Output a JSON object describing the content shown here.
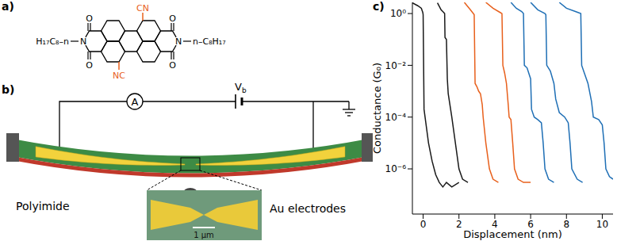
{
  "panels": {
    "a": {
      "panel_label": "a)",
      "molecule": {
        "left_chain": "H₁₇C₈–n",
        "right_chain": "n–C₈H₁₇",
        "imide_atom": "N",
        "carbonyl_atom": "O",
        "substituent_top": "CN",
        "substituent_bottom": "NC",
        "substituent_color": "#e8601c"
      }
    },
    "b": {
      "panel_label": "b)",
      "ammeter": "A",
      "bias_symbol": "V",
      "bias_subscript": "b",
      "substrate_label": "Polyimide",
      "electrode_label": "Au electrodes",
      "scale_bar": "1 µm"
    }
  },
  "chart_data": {
    "panel_label": "c)",
    "type": "line",
    "x_label": "Displacement (nm)",
    "y_label": "Conductance (G₀)",
    "log": "y",
    "xlim": [
      -0.6,
      10.6
    ],
    "xticks": [
      0,
      2,
      4,
      6,
      8,
      10
    ],
    "ylim": [
      1.8e-08,
      2.7
    ],
    "yticks": [
      {
        "value": 1e-06,
        "label": "10⁻⁶"
      },
      {
        "value": 0.0001,
        "label": "10⁻⁴"
      },
      {
        "value": 0.01,
        "label": "10⁻²"
      },
      {
        "value": 1,
        "label": "10⁰"
      }
    ],
    "series": [
      {
        "color": "#1a1a1a",
        "x": [
          -0.6,
          -0.3,
          -0.1,
          -0.02,
          0.0,
          0.05,
          0.15,
          0.3,
          0.5,
          0.7,
          0.9,
          1.1,
          1.3,
          1.6,
          2.0
        ],
        "values": [
          2.6,
          2.0,
          1.6,
          1.1,
          0.9,
          0.0002,
          6e-05,
          1e-05,
          2e-06,
          6e-07,
          3e-07,
          2e-07,
          3e-07,
          2e-07,
          3e-07
        ]
      },
      {
        "color": "#1a1a1a",
        "x": [
          0.8,
          1.0,
          1.15,
          1.2,
          1.22,
          1.3,
          1.35,
          1.4,
          1.6,
          1.8,
          2.0,
          2.2,
          2.5
        ],
        "values": [
          2.6,
          1.4,
          1.1,
          1.0,
          0.12,
          0.1,
          0.003,
          0.0008,
          0.0001,
          1e-05,
          1e-06,
          4e-07,
          3e-07
        ]
      },
      {
        "color": "#e8601c",
        "x": [
          2.3,
          2.6,
          2.8,
          2.85,
          2.9,
          3.0,
          3.1,
          3.2,
          3.3,
          3.35,
          3.5,
          3.7,
          3.9,
          4.2
        ],
        "values": [
          2.7,
          1.5,
          1.0,
          0.9,
          0.002,
          0.0015,
          0.001,
          0.0008,
          0.0003,
          0.0001,
          1e-05,
          1e-06,
          4e-07,
          3e-07
        ]
      },
      {
        "color": "#e8601c",
        "x": [
          3.5,
          3.9,
          4.3,
          4.4,
          4.45,
          4.55,
          4.65,
          4.75,
          4.8,
          4.9,
          5.0,
          5.1,
          5.3,
          5.6,
          6.0
        ],
        "values": [
          2.7,
          1.6,
          1.1,
          1.0,
          0.01,
          0.005,
          0.002,
          0.0003,
          0.0001,
          8e-05,
          1e-05,
          1e-06,
          4e-07,
          3e-07,
          3e-07
        ]
      },
      {
        "color": "#1f6fb5",
        "x": [
          4.9,
          5.2,
          5.5,
          5.6,
          5.65,
          5.8,
          6.0,
          6.05,
          6.2,
          6.4,
          6.6,
          6.7,
          6.8,
          7.0,
          7.3
        ],
        "values": [
          2.7,
          1.6,
          1.2,
          1.0,
          0.01,
          0.008,
          0.003,
          0.0002,
          0.0001,
          8e-05,
          6e-05,
          1e-05,
          1e-06,
          4e-07,
          3e-07
        ]
      },
      {
        "color": "#1f6fb5",
        "x": [
          6.0,
          6.4,
          6.8,
          6.85,
          6.9,
          7.1,
          7.3,
          7.4,
          7.6,
          7.9,
          8.1,
          8.2,
          8.3,
          8.6,
          8.9
        ],
        "values": [
          2.7,
          1.4,
          1.0,
          0.9,
          0.01,
          0.006,
          0.002,
          0.0005,
          0.00015,
          0.0001,
          6e-05,
          1e-05,
          1e-06,
          4e-07,
          3e-07
        ]
      },
      {
        "color": "#1f6fb5",
        "x": [
          7.6,
          8.0,
          8.5,
          8.8,
          8.85,
          9.0,
          9.2,
          9.4,
          9.5,
          9.8,
          10.0,
          10.1,
          10.2,
          10.4,
          10.6
        ],
        "values": [
          2.7,
          1.6,
          1.2,
          1.0,
          0.01,
          0.005,
          0.002,
          0.0004,
          0.0001,
          8e-05,
          5e-05,
          1e-05,
          1e-06,
          5e-07,
          4e-07
        ]
      }
    ]
  }
}
